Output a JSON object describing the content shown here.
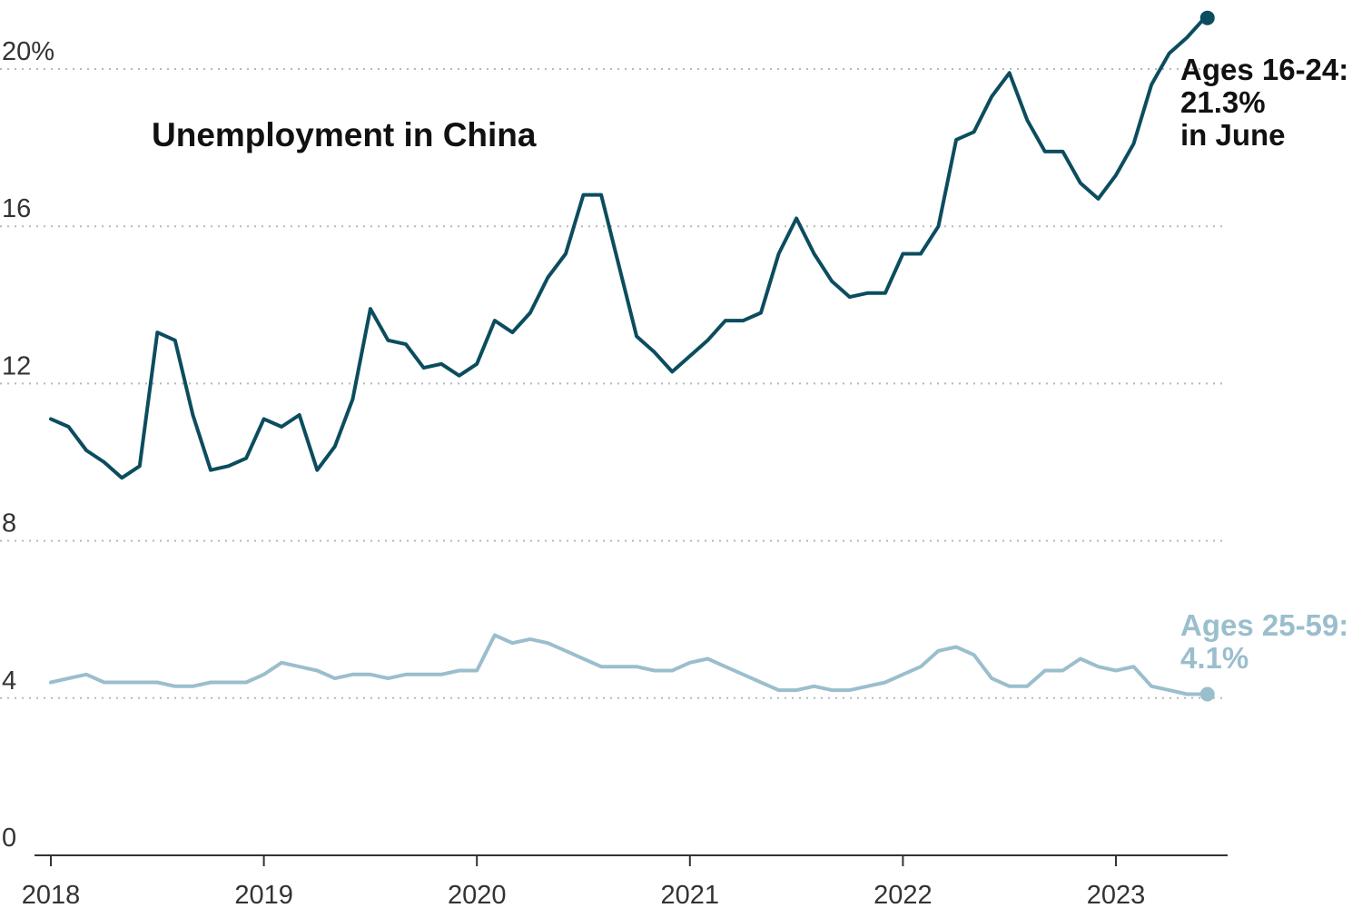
{
  "chart_data": {
    "type": "line",
    "title": "Unemployment in China",
    "xlabel": "",
    "ylabel": "",
    "ylim": [
      0,
      21.3
    ],
    "grid": true,
    "y_ticks": [
      {
        "value": 0,
        "label": "0"
      },
      {
        "value": 4,
        "label": "4"
      },
      {
        "value": 8,
        "label": "8"
      },
      {
        "value": 12,
        "label": "12"
      },
      {
        "value": 16,
        "label": "16"
      },
      {
        "value": 20,
        "label": "20%"
      }
    ],
    "x_ticks": [
      "2018",
      "2019",
      "2020",
      "2021",
      "2022",
      "2023"
    ],
    "x_start": "2018-01",
    "series": [
      {
        "name": "Ages 16-24",
        "color": "#0b4d5e",
        "annotation": [
          "Ages 16-24:",
          "21.3%",
          "in June"
        ],
        "values": [
          11.1,
          10.9,
          10.3,
          10.0,
          9.6,
          9.9,
          13.3,
          13.1,
          11.2,
          9.8,
          9.9,
          10.1,
          11.1,
          10.9,
          11.2,
          9.8,
          10.4,
          11.6,
          13.9,
          13.1,
          13.0,
          12.4,
          12.5,
          12.2,
          12.5,
          13.6,
          13.3,
          13.8,
          14.7,
          15.3,
          16.8,
          16.8,
          15.0,
          13.2,
          12.8,
          12.3,
          12.7,
          13.1,
          13.6,
          13.6,
          13.8,
          15.3,
          16.2,
          15.3,
          14.6,
          14.2,
          14.3,
          14.3,
          15.3,
          15.3,
          16.0,
          18.2,
          18.4,
          19.3,
          19.9,
          18.7,
          17.9,
          17.9,
          17.1,
          16.7,
          17.3,
          18.1,
          19.6,
          20.4,
          20.8,
          21.3
        ]
      },
      {
        "name": "Ages 25-59",
        "color": "#9bbecd",
        "annotation": [
          "Ages 25-59:",
          "4.1%"
        ],
        "values": [
          4.4,
          4.5,
          4.6,
          4.4,
          4.4,
          4.4,
          4.4,
          4.3,
          4.3,
          4.4,
          4.4,
          4.4,
          4.6,
          4.9,
          4.8,
          4.7,
          4.5,
          4.6,
          4.6,
          4.5,
          4.6,
          4.6,
          4.6,
          4.7,
          4.7,
          5.6,
          5.4,
          5.5,
          5.4,
          5.2,
          5.0,
          4.8,
          4.8,
          4.8,
          4.7,
          4.7,
          4.9,
          5.0,
          4.8,
          4.6,
          4.4,
          4.2,
          4.2,
          4.3,
          4.2,
          4.2,
          4.3,
          4.4,
          4.6,
          4.8,
          5.2,
          5.3,
          5.1,
          4.5,
          4.3,
          4.3,
          4.7,
          4.7,
          5.0,
          4.8,
          4.7,
          4.8,
          4.3,
          4.2,
          4.1,
          4.1
        ]
      }
    ]
  }
}
